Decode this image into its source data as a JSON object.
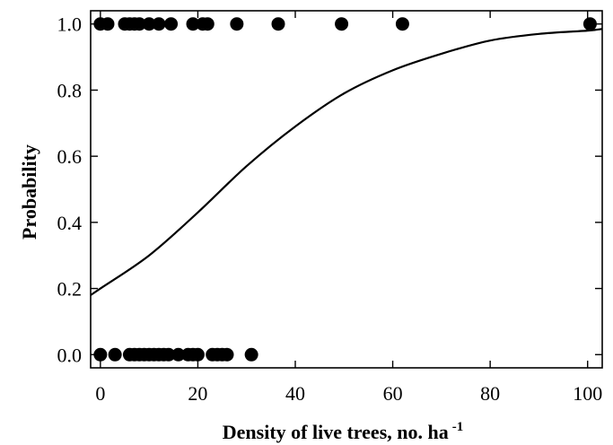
{
  "chart_data": {
    "type": "scatter",
    "xlabel": "Density of live trees, no. ha",
    "xlabel_superscript": "-1",
    "ylabel": "Probability",
    "xlim": [
      -2,
      103
    ],
    "ylim": [
      -0.04,
      1.04
    ],
    "xticks": [
      0,
      20,
      40,
      60,
      80,
      100
    ],
    "xtick_labels": [
      "0",
      "20",
      "40",
      "60",
      "80",
      "100"
    ],
    "yticks": [
      0.0,
      0.2,
      0.4,
      0.6,
      0.8,
      1.0
    ],
    "ytick_labels": [
      "0.0",
      "0.2",
      "0.4",
      "0.6",
      "0.8",
      "1.0"
    ],
    "grid": false,
    "series": [
      {
        "kind": "points",
        "marker": "filled-circle",
        "color": "#000000",
        "x": [
          0,
          1.5,
          5,
          6,
          7,
          8,
          10,
          12,
          14.5,
          19,
          21,
          22,
          28,
          36.5,
          49.5,
          62,
          100.5,
          0,
          3,
          6,
          7,
          8,
          9,
          10,
          11,
          12,
          13,
          14,
          16,
          18,
          19,
          20,
          23,
          24,
          25,
          26,
          31
        ],
        "y": [
          1,
          1,
          1,
          1,
          1,
          1,
          1,
          1,
          1,
          1,
          1,
          1,
          1,
          1,
          1,
          1,
          1,
          0,
          0,
          0,
          0,
          0,
          0,
          0,
          0,
          0,
          0,
          0,
          0,
          0,
          0,
          0,
          0,
          0,
          0,
          0,
          0
        ]
      },
      {
        "kind": "fitted-curve",
        "model": "logistic",
        "color": "#000000",
        "x": [
          -2,
          0,
          10,
          20,
          30,
          40,
          50,
          60,
          70,
          80,
          90,
          100,
          103
        ],
        "y": [
          0.18,
          0.2,
          0.3,
          0.43,
          0.57,
          0.69,
          0.79,
          0.86,
          0.91,
          0.95,
          0.97,
          0.98,
          0.985
        ]
      }
    ]
  }
}
